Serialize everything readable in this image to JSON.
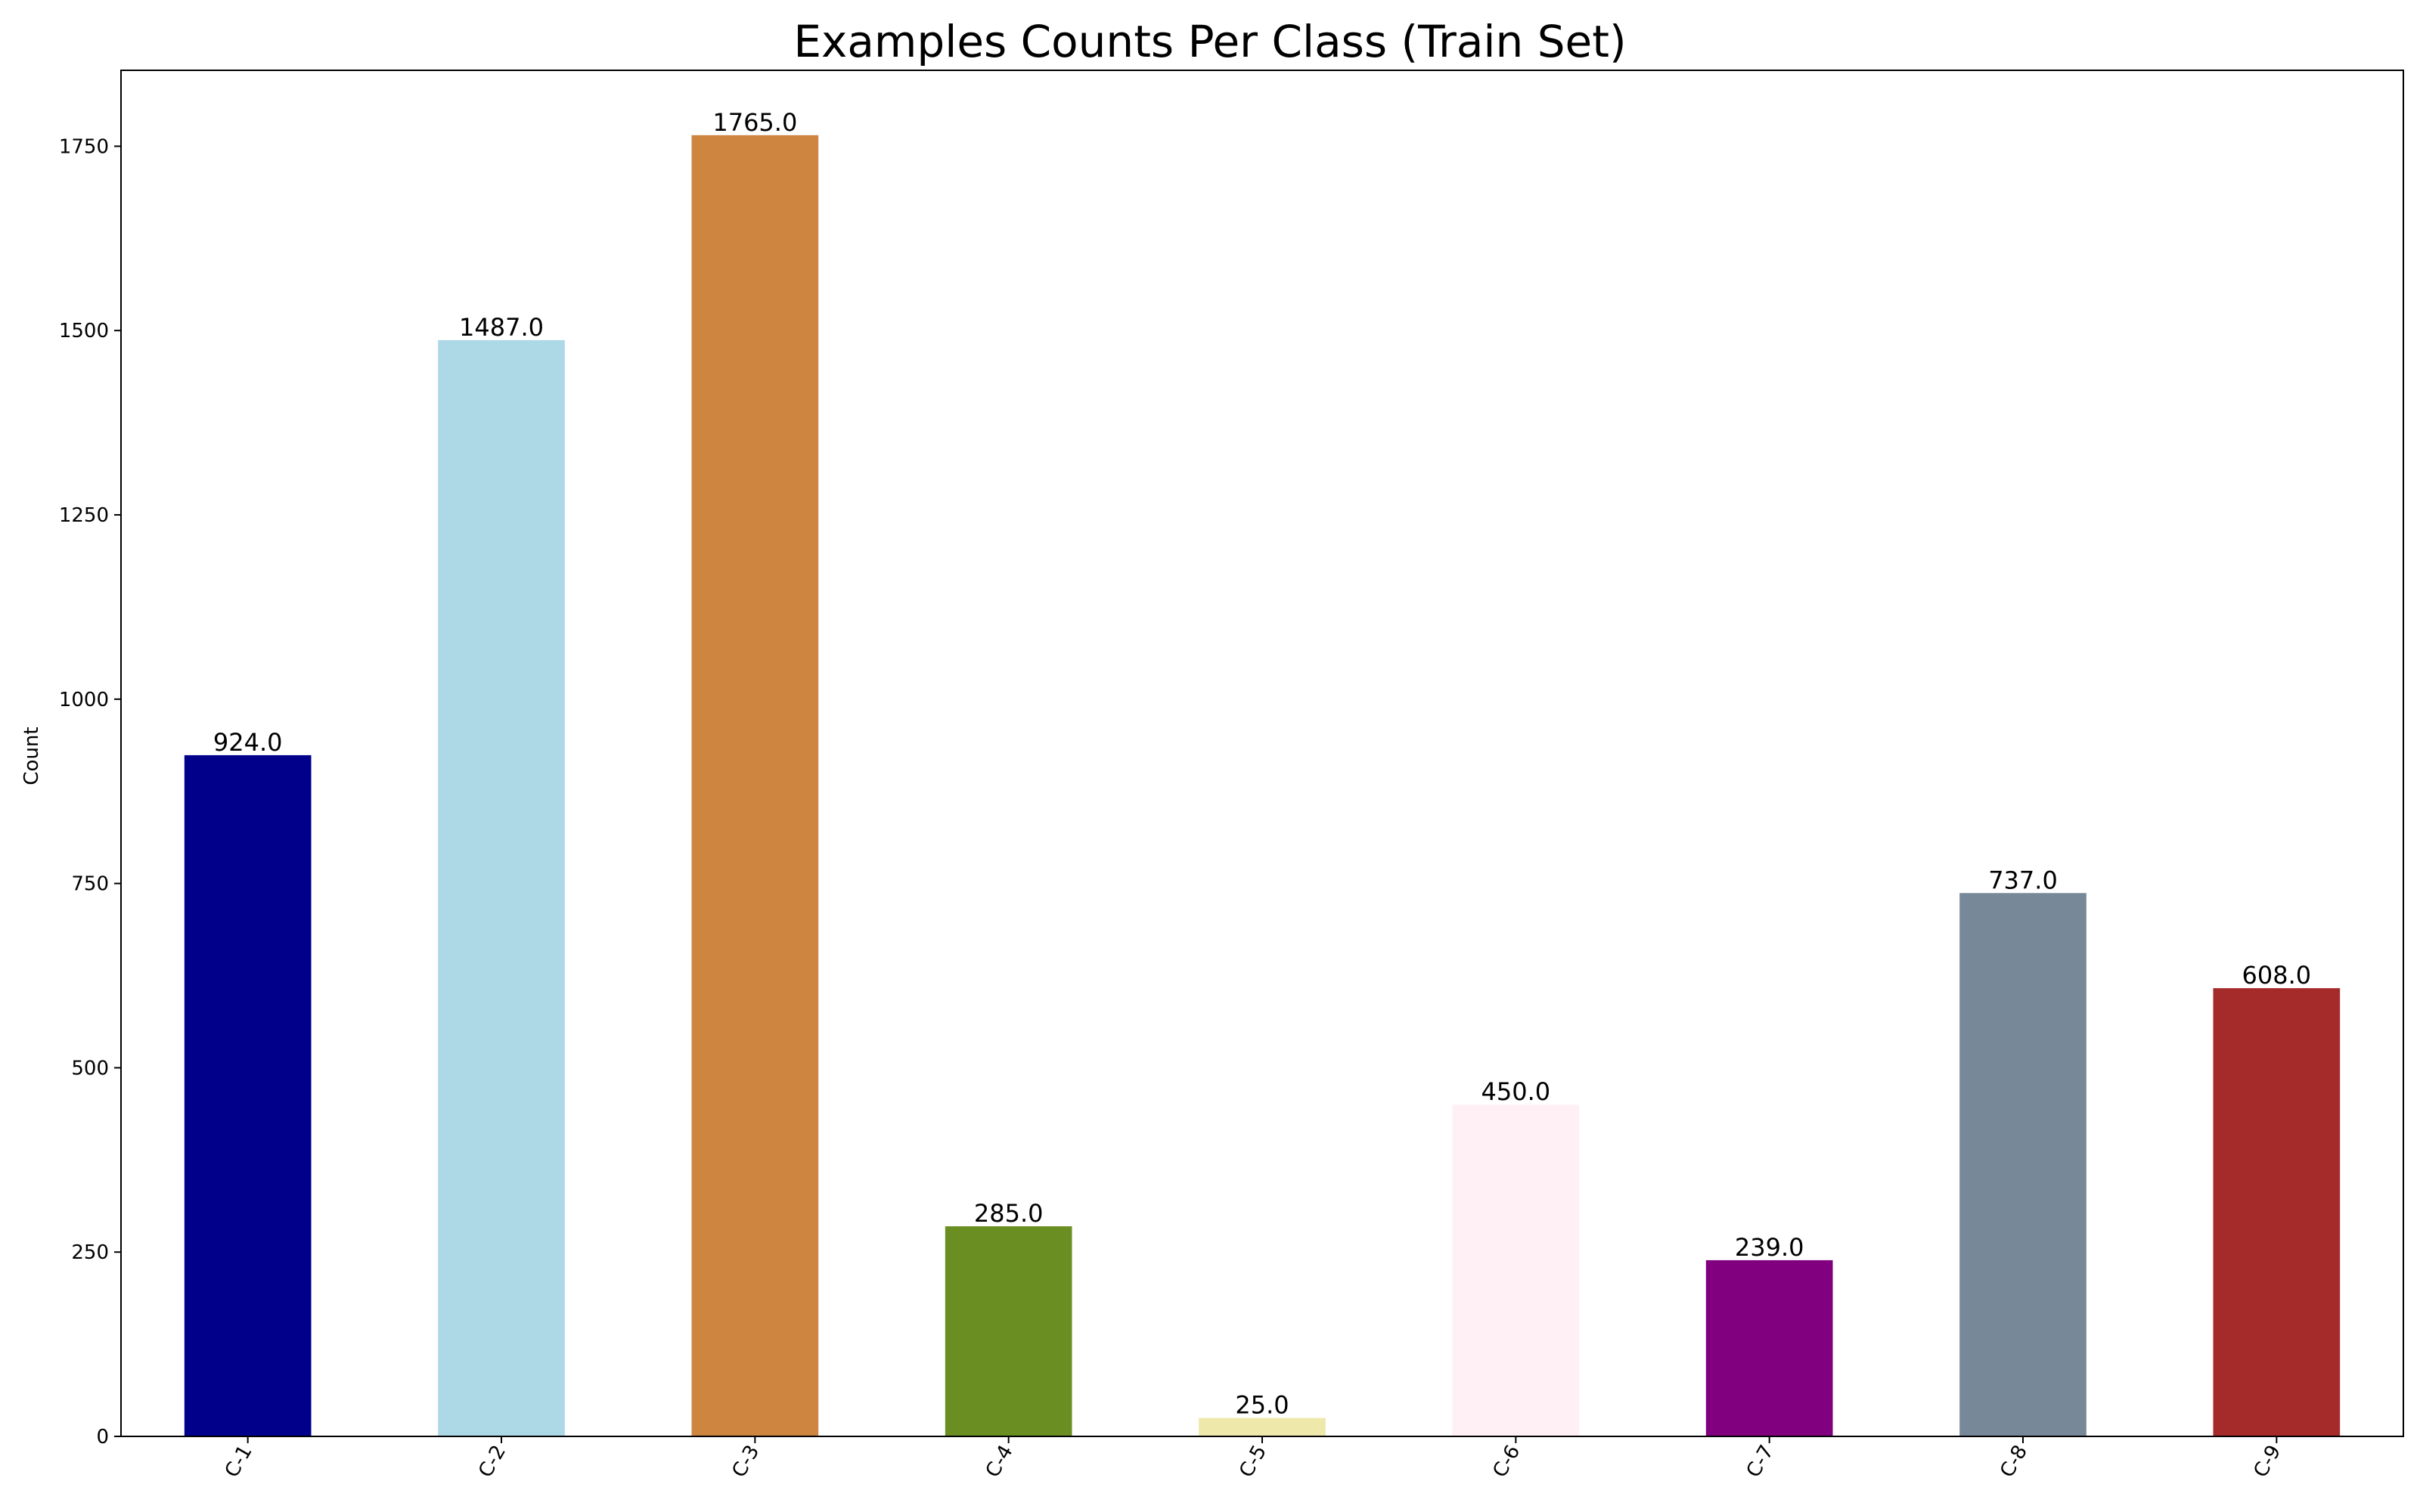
{
  "chart_data": {
    "type": "bar",
    "title": "Examples Counts Per Class (Train Set)",
    "xlabel": "",
    "ylabel": "Count",
    "categories": [
      "C-1",
      "C-2",
      "C-3",
      "C-4",
      "C-5",
      "C-6",
      "C-7",
      "C-8",
      "C-9"
    ],
    "values": [
      924,
      1487,
      1765,
      285,
      25,
      450,
      239,
      737,
      608
    ],
    "data_labels": [
      "924.0",
      "1487.0",
      "1765.0",
      "285.0",
      "25.0",
      "450.0",
      "239.0",
      "737.0",
      "608.0"
    ],
    "colors": [
      "#00008b",
      "#add8e6",
      "#cd853f",
      "#6b8e23",
      "#eee8aa",
      "#fff0f5",
      "#800080",
      "#778899",
      "#a52a2a"
    ],
    "ylim": [
      0,
      1853
    ],
    "yticks": [
      0,
      250,
      500,
      750,
      1000,
      1250,
      1500,
      1750
    ],
    "ytick_labels": [
      "0",
      "250",
      "500",
      "750",
      "1000",
      "1250",
      "1500",
      "1750"
    ],
    "grid": false,
    "legend": "none"
  }
}
